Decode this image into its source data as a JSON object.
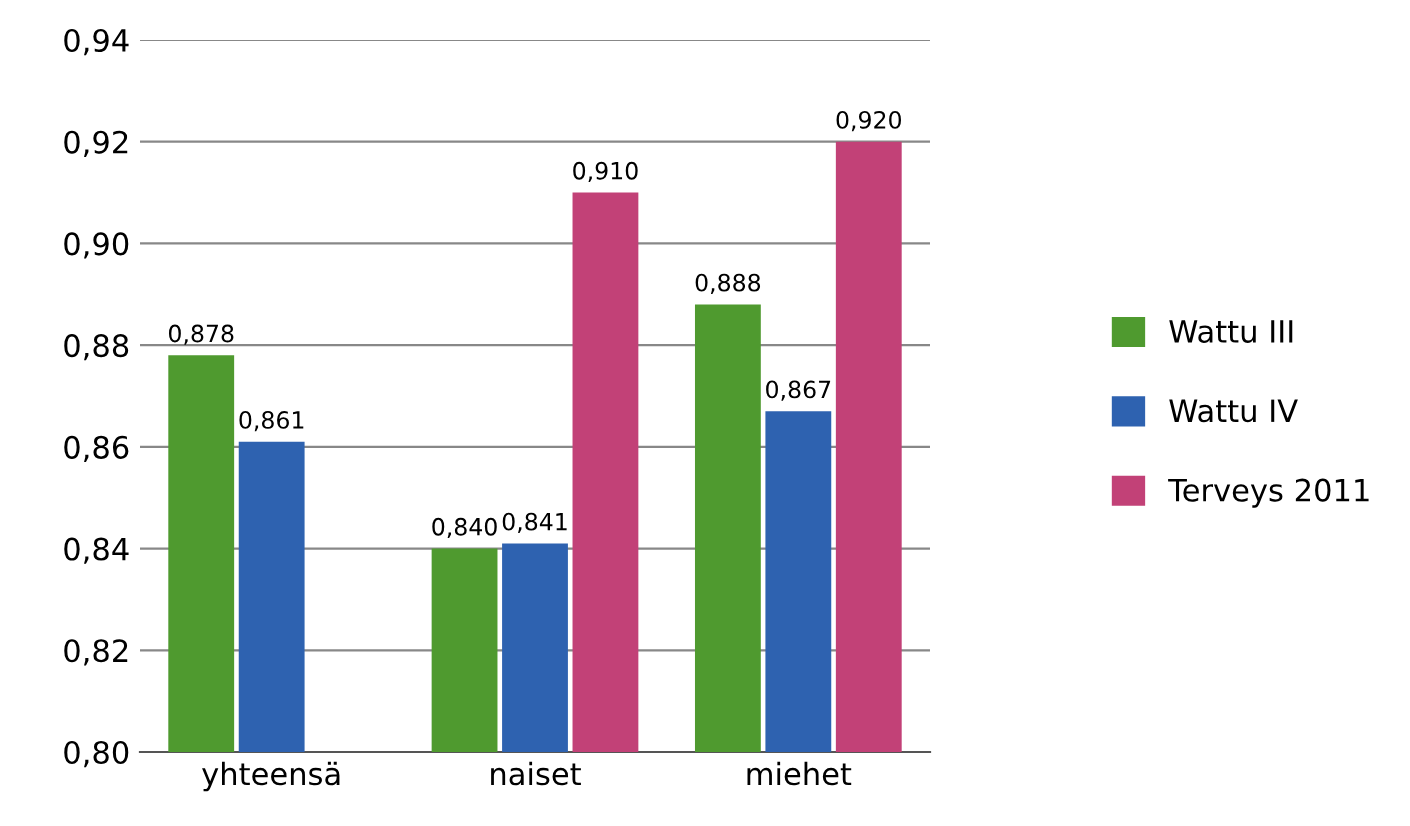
{
  "chart_data": {
    "type": "bar",
    "categories": [
      "yhteensä",
      "naiset",
      "miehet"
    ],
    "series": [
      {
        "name": "Wattu III",
        "color": "#4f9a2f",
        "values": [
          0.878,
          0.84,
          0.888
        ],
        "value_labels": [
          "0,878",
          "0,840",
          "0,888"
        ]
      },
      {
        "name": "Wattu IV",
        "color": "#2e62b0",
        "values": [
          0.861,
          0.841,
          0.867
        ],
        "value_labels": [
          "0,861",
          "0,841",
          "0,867"
        ]
      },
      {
        "name": "Terveys 2011",
        "color": "#c24177",
        "values": [
          null,
          0.91,
          0.92
        ],
        "value_labels": [
          null,
          "0,910",
          "0,920"
        ]
      }
    ],
    "ylim": [
      0.8,
      0.94
    ],
    "yticks": [
      {
        "value": 0.8,
        "label": "0,80"
      },
      {
        "value": 0.82,
        "label": "0,82"
      },
      {
        "value": 0.84,
        "label": "0,84"
      },
      {
        "value": 0.86,
        "label": "0,86"
      },
      {
        "value": 0.88,
        "label": "0,88"
      },
      {
        "value": 0.9,
        "label": "0,90"
      },
      {
        "value": 0.92,
        "label": "0,92"
      },
      {
        "value": 0.94,
        "label": "0,94"
      }
    ],
    "grid": "y",
    "legend": "right"
  }
}
